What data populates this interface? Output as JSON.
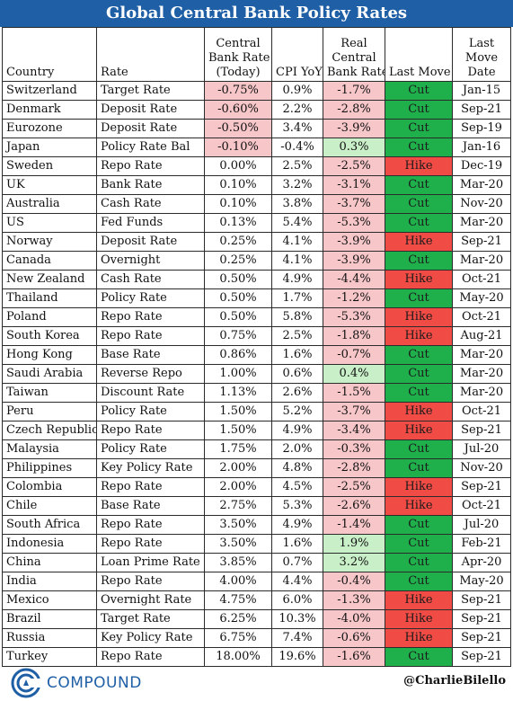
{
  "title": "Global Central Bank Policy Rates",
  "chart_data": {
    "type": "table",
    "columns": [
      "Country",
      "Rate",
      "Central Bank Rate (Today)",
      "CPI YoY",
      "Real Central Bank Rate",
      "Last Move",
      "Last Move Date"
    ],
    "header_lines": {
      "country": "Country",
      "rate": "Rate",
      "cbr": [
        "Central",
        "Bank Rate",
        "(Today)"
      ],
      "cpi": "CPI YoY",
      "real": [
        "Real",
        "Central",
        "Bank Rate"
      ],
      "move": "Last Move",
      "date": [
        "Last",
        "Move",
        "Date"
      ]
    },
    "rows": [
      {
        "country": "Switzerland",
        "rate": "Target Rate",
        "cbr": "-0.75%",
        "cpi": "0.9%",
        "real": "-1.7%",
        "move": "Cut",
        "date": "Jan-15"
      },
      {
        "country": "Denmark",
        "rate": "Deposit Rate",
        "cbr": "-0.60%",
        "cpi": "2.2%",
        "real": "-2.8%",
        "move": "Cut",
        "date": "Sep-21"
      },
      {
        "country": "Eurozone",
        "rate": "Deposit Rate",
        "cbr": "-0.50%",
        "cpi": "3.4%",
        "real": "-3.9%",
        "move": "Cut",
        "date": "Sep-19"
      },
      {
        "country": "Japan",
        "rate": "Policy Rate Bal",
        "cbr": "-0.10%",
        "cpi": "-0.4%",
        "real": "0.3%",
        "move": "Cut",
        "date": "Jan-16"
      },
      {
        "country": "Sweden",
        "rate": "Repo Rate",
        "cbr": "0.00%",
        "cpi": "2.5%",
        "real": "-2.5%",
        "move": "Hike",
        "date": "Dec-19"
      },
      {
        "country": "UK",
        "rate": "Bank Rate",
        "cbr": "0.10%",
        "cpi": "3.2%",
        "real": "-3.1%",
        "move": "Cut",
        "date": "Mar-20"
      },
      {
        "country": "Australia",
        "rate": "Cash Rate",
        "cbr": "0.10%",
        "cpi": "3.8%",
        "real": "-3.7%",
        "move": "Cut",
        "date": "Nov-20"
      },
      {
        "country": "US",
        "rate": "Fed Funds",
        "cbr": "0.13%",
        "cpi": "5.4%",
        "real": "-5.3%",
        "move": "Cut",
        "date": "Mar-20"
      },
      {
        "country": "Norway",
        "rate": "Deposit Rate",
        "cbr": "0.25%",
        "cpi": "4.1%",
        "real": "-3.9%",
        "move": "Hike",
        "date": "Sep-21"
      },
      {
        "country": "Canada",
        "rate": "Overnight",
        "cbr": "0.25%",
        "cpi": "4.1%",
        "real": "-3.9%",
        "move": "Cut",
        "date": "Mar-20"
      },
      {
        "country": "New Zealand",
        "rate": "Cash Rate",
        "cbr": "0.50%",
        "cpi": "4.9%",
        "real": "-4.4%",
        "move": "Hike",
        "date": "Oct-21"
      },
      {
        "country": "Thailand",
        "rate": "Policy Rate",
        "cbr": "0.50%",
        "cpi": "1.7%",
        "real": "-1.2%",
        "move": "Cut",
        "date": "May-20"
      },
      {
        "country": "Poland",
        "rate": "Repo Rate",
        "cbr": "0.50%",
        "cpi": "5.8%",
        "real": "-5.3%",
        "move": "Hike",
        "date": "Oct-21"
      },
      {
        "country": "South Korea",
        "rate": "Repo Rate",
        "cbr": "0.75%",
        "cpi": "2.5%",
        "real": "-1.8%",
        "move": "Hike",
        "date": "Aug-21"
      },
      {
        "country": "Hong Kong",
        "rate": "Base Rate",
        "cbr": "0.86%",
        "cpi": "1.6%",
        "real": "-0.7%",
        "move": "Cut",
        "date": "Mar-20"
      },
      {
        "country": "Saudi Arabia",
        "rate": "Reverse Repo",
        "cbr": "1.00%",
        "cpi": "0.6%",
        "real": "0.4%",
        "move": "Cut",
        "date": "Mar-20"
      },
      {
        "country": "Taiwan",
        "rate": "Discount Rate",
        "cbr": "1.13%",
        "cpi": "2.6%",
        "real": "-1.5%",
        "move": "Cut",
        "date": "Mar-20"
      },
      {
        "country": "Peru",
        "rate": "Policy Rate",
        "cbr": "1.50%",
        "cpi": "5.2%",
        "real": "-3.7%",
        "move": "Hike",
        "date": "Oct-21"
      },
      {
        "country": "Czech Republic",
        "rate": "Repo Rate",
        "cbr": "1.50%",
        "cpi": "4.9%",
        "real": "-3.4%",
        "move": "Hike",
        "date": "Sep-21"
      },
      {
        "country": "Malaysia",
        "rate": "Policy Rate",
        "cbr": "1.75%",
        "cpi": "2.0%",
        "real": "-0.3%",
        "move": "Cut",
        "date": "Jul-20"
      },
      {
        "country": "Philippines",
        "rate": "Key Policy Rate",
        "cbr": "2.00%",
        "cpi": "4.8%",
        "real": "-2.8%",
        "move": "Cut",
        "date": "Nov-20"
      },
      {
        "country": "Colombia",
        "rate": "Repo Rate",
        "cbr": "2.00%",
        "cpi": "4.5%",
        "real": "-2.5%",
        "move": "Hike",
        "date": "Sep-21"
      },
      {
        "country": "Chile",
        "rate": "Base Rate",
        "cbr": "2.75%",
        "cpi": "5.3%",
        "real": "-2.6%",
        "move": "Hike",
        "date": "Oct-21"
      },
      {
        "country": "South Africa",
        "rate": "Repo Rate",
        "cbr": "3.50%",
        "cpi": "4.9%",
        "real": "-1.4%",
        "move": "Cut",
        "date": "Jul-20"
      },
      {
        "country": "Indonesia",
        "rate": "Repo Rate",
        "cbr": "3.50%",
        "cpi": "1.6%",
        "real": "1.9%",
        "move": "Cut",
        "date": "Feb-21"
      },
      {
        "country": "China",
        "rate": "Loan Prime Rate",
        "cbr": "3.85%",
        "cpi": "0.7%",
        "real": "3.2%",
        "move": "Cut",
        "date": "Apr-20"
      },
      {
        "country": "India",
        "rate": "Repo Rate",
        "cbr": "4.00%",
        "cpi": "4.4%",
        "real": "-0.4%",
        "move": "Cut",
        "date": "May-20"
      },
      {
        "country": "Mexico",
        "rate": "Overnight Rate",
        "cbr": "4.75%",
        "cpi": "6.0%",
        "real": "-1.3%",
        "move": "Hike",
        "date": "Sep-21"
      },
      {
        "country": "Brazil",
        "rate": "Target Rate",
        "cbr": "6.25%",
        "cpi": "10.3%",
        "real": "-4.0%",
        "move": "Hike",
        "date": "Sep-21"
      },
      {
        "country": "Russia",
        "rate": "Key Policy Rate",
        "cbr": "6.75%",
        "cpi": "7.4%",
        "real": "-0.6%",
        "move": "Hike",
        "date": "Sep-21"
      },
      {
        "country": "Turkey",
        "rate": "Repo Rate",
        "cbr": "18.00%",
        "cpi": "19.6%",
        "real": "-1.6%",
        "move": "Cut",
        "date": "Sep-21"
      }
    ]
  },
  "colors": {
    "title_bg": "#1f5fa5",
    "negative_fill": "#f6c6c9",
    "positive_fill": "#c9efc8",
    "cut_fill": "#1fb04c",
    "hike_fill": "#f04b45"
  },
  "footer": {
    "brand": "COMPOUND",
    "logo_icon": "compound-logo-icon",
    "handle": "@CharlieBilello"
  }
}
